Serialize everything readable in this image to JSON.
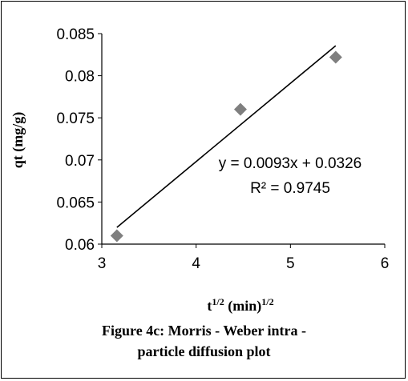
{
  "chart_data": {
    "type": "scatter",
    "x": [
      3.16,
      4.47,
      5.48
    ],
    "y": [
      0.061,
      0.076,
      0.0822
    ],
    "xlim": [
      3,
      6
    ],
    "ylim": [
      0.06,
      0.085
    ],
    "x_ticks": [
      "3",
      "4",
      "5",
      "6"
    ],
    "y_ticks": [
      "0.06",
      "0.065",
      "0.07",
      "0.075",
      "0.08",
      "0.085"
    ],
    "trendline": {
      "slope": 0.0093,
      "intercept": 0.0326,
      "x_range": [
        3.16,
        5.48
      ]
    },
    "equation": "y = 0.0093x + 0.0326",
    "r_squared": "R² = 0.9745",
    "xlabel": "t^1/2 (min)^1/2",
    "ylabel": "qt (mg/g)",
    "grid": false,
    "marker_color": "#7f7f7f",
    "line_color": "#000000"
  },
  "caption": {
    "line1": "Figure 4c: Morris  - Weber intra -",
    "line2": "particle diffusion plot"
  }
}
